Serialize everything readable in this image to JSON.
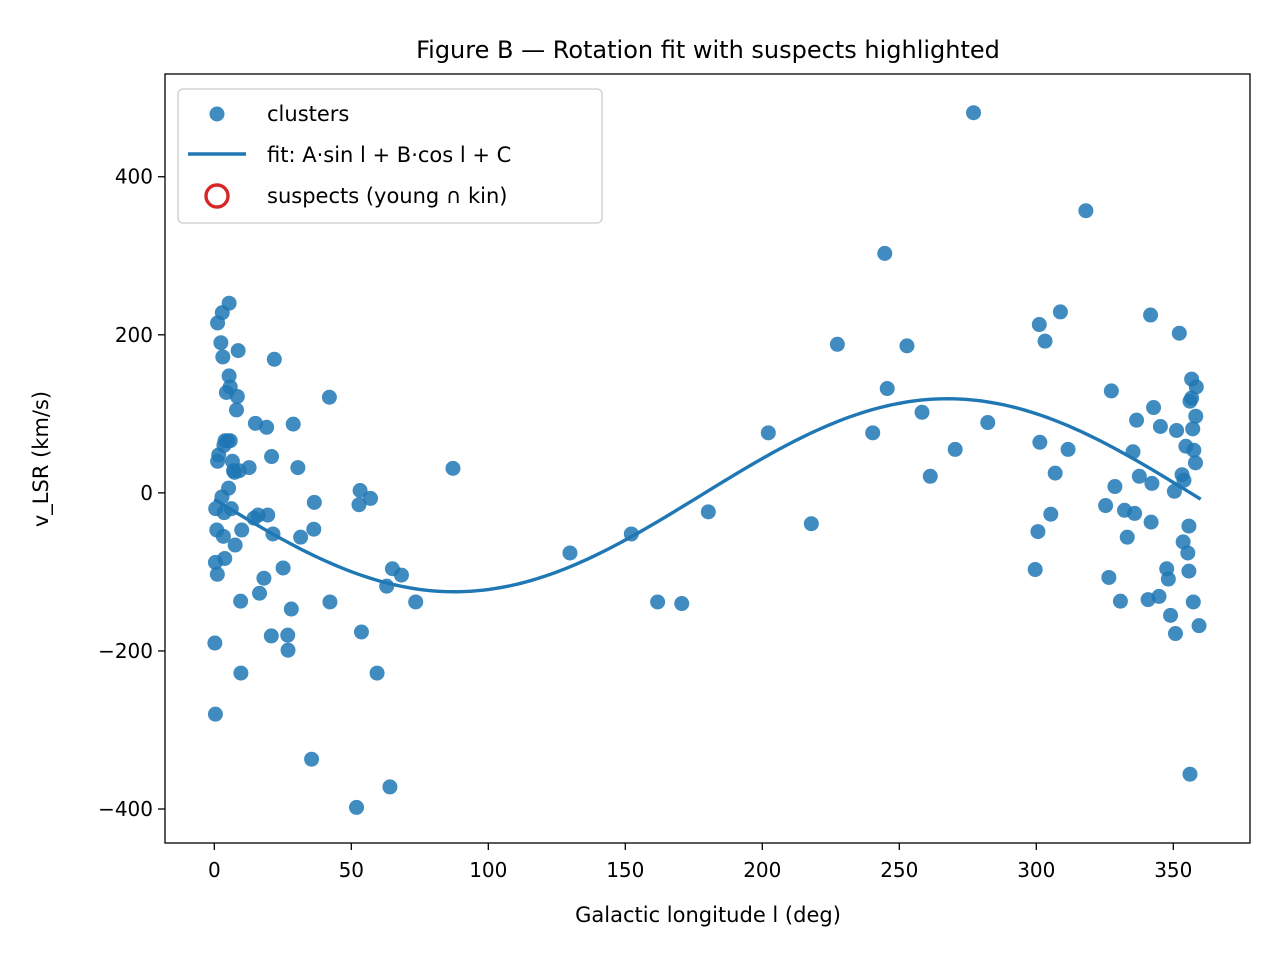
{
  "chart_data": {
    "type": "scatter",
    "title": "Figure B — Rotation fit with suspects highlighted",
    "xlabel": "Galactic longitude l (deg)",
    "ylabel": "v_LSR (km/s)",
    "xlim": [
      -18,
      378
    ],
    "ylim": [
      -443,
      530
    ],
    "x_ticks": [
      0,
      50,
      100,
      150,
      200,
      250,
      300,
      350
    ],
    "y_ticks": [
      -400,
      -200,
      0,
      200,
      400
    ],
    "x_tick_labels": [
      "0",
      "50",
      "100",
      "150",
      "200",
      "250",
      "300",
      "350"
    ],
    "y_tick_labels": [
      "−400",
      "−200",
      "0",
      "200",
      "400"
    ],
    "grid": false,
    "legend_position": "top-left",
    "legend": [
      {
        "label": "clusters",
        "kind": "marker"
      },
      {
        "label": "fit: A·sin l + B·cos l + C",
        "kind": "line"
      },
      {
        "label": "suspects (young ∩ kin)",
        "kind": "ring"
      }
    ],
    "colors": {
      "clusters": "#1f77b4",
      "fit": "#1f77b4",
      "suspects": "#d62728"
    },
    "series": [
      {
        "name": "clusters",
        "kind": "scatter",
        "points": [
          [
            0.4,
            -280
          ],
          [
            0.2,
            -190
          ],
          [
            0.4,
            -88
          ],
          [
            1.1,
            -103
          ],
          [
            0.9,
            -47
          ],
          [
            0.5,
            -20
          ],
          [
            1.2,
            40
          ],
          [
            1.6,
            48
          ],
          [
            1.2,
            215
          ],
          [
            2.4,
            190
          ],
          [
            2.9,
            228
          ],
          [
            3.1,
            172
          ],
          [
            2.8,
            -5
          ],
          [
            3.3,
            -55
          ],
          [
            3.6,
            -25
          ],
          [
            3.8,
            -83
          ],
          [
            3.5,
            60
          ],
          [
            3.9,
            66
          ],
          [
            4.9,
            66
          ],
          [
            5.8,
            66
          ],
          [
            4.4,
            127
          ],
          [
            5.4,
            148
          ],
          [
            5.4,
            240
          ],
          [
            5.8,
            134
          ],
          [
            5.2,
            6
          ],
          [
            6.2,
            -20
          ],
          [
            6.6,
            40
          ],
          [
            7.0,
            28
          ],
          [
            7.4,
            26
          ],
          [
            7.6,
            -66
          ],
          [
            8.1,
            105
          ],
          [
            8.4,
            122
          ],
          [
            8.7,
            180
          ],
          [
            9.1,
            28
          ],
          [
            9.6,
            -137
          ],
          [
            9.7,
            -228
          ],
          [
            10.0,
            -47
          ],
          [
            12.7,
            32
          ],
          [
            14.5,
            -32
          ],
          [
            15.0,
            88
          ],
          [
            16.0,
            -28
          ],
          [
            16.5,
            -127
          ],
          [
            18.1,
            -108
          ],
          [
            19.1,
            83
          ],
          [
            19.5,
            -28
          ],
          [
            20.8,
            -181
          ],
          [
            20.9,
            46
          ],
          [
            21.4,
            -52
          ],
          [
            21.9,
            169
          ],
          [
            25.1,
            -95
          ],
          [
            26.8,
            -180
          ],
          [
            26.9,
            -199
          ],
          [
            28.1,
            -147
          ],
          [
            28.8,
            87
          ],
          [
            30.5,
            32
          ],
          [
            31.5,
            -56
          ],
          [
            35.5,
            -337
          ],
          [
            36.3,
            -46
          ],
          [
            36.5,
            -12
          ],
          [
            42.0,
            121
          ],
          [
            42.2,
            -138
          ],
          [
            51.9,
            -398
          ],
          [
            52.8,
            -15
          ],
          [
            53.2,
            3
          ],
          [
            53.7,
            -176
          ],
          [
            57.0,
            -7
          ],
          [
            59.4,
            -228
          ],
          [
            62.9,
            -118
          ],
          [
            64.1,
            -372
          ],
          [
            65.0,
            -96
          ],
          [
            68.3,
            -104
          ],
          [
            73.5,
            -138
          ],
          [
            87.1,
            31
          ],
          [
            129.8,
            -76
          ],
          [
            152.2,
            -52
          ],
          [
            161.8,
            -138
          ],
          [
            170.6,
            -140
          ],
          [
            180.3,
            -24
          ],
          [
            202.2,
            76
          ],
          [
            217.9,
            -39
          ],
          [
            227.4,
            188
          ],
          [
            240.3,
            76
          ],
          [
            244.7,
            303
          ],
          [
            245.6,
            132
          ],
          [
            252.8,
            186
          ],
          [
            258.3,
            102
          ],
          [
            261.3,
            21
          ],
          [
            270.4,
            55
          ],
          [
            277.1,
            481
          ],
          [
            282.3,
            89
          ],
          [
            299.6,
            -97
          ],
          [
            300.6,
            -49
          ],
          [
            301.1,
            213
          ],
          [
            301.3,
            64
          ],
          [
            303.2,
            192
          ],
          [
            305.3,
            -27
          ],
          [
            306.9,
            25
          ],
          [
            308.8,
            229
          ],
          [
            311.6,
            55
          ],
          [
            318.1,
            357
          ],
          [
            325.3,
            -16
          ],
          [
            326.5,
            -107
          ],
          [
            327.4,
            129
          ],
          [
            328.7,
            8
          ],
          [
            330.7,
            -137
          ],
          [
            332.2,
            -22
          ],
          [
            333.2,
            -56
          ],
          [
            335.3,
            52
          ],
          [
            335.9,
            -26
          ],
          [
            336.6,
            92
          ],
          [
            337.6,
            21
          ],
          [
            340.8,
            -135
          ],
          [
            341.7,
            225
          ],
          [
            341.9,
            -37
          ],
          [
            342.2,
            12
          ],
          [
            342.8,
            108
          ],
          [
            344.8,
            -131
          ],
          [
            345.3,
            84
          ],
          [
            347.6,
            -96
          ],
          [
            348.2,
            -109
          ],
          [
            349.0,
            -155
          ],
          [
            350.4,
            2
          ],
          [
            350.8,
            -178
          ],
          [
            351.2,
            79
          ],
          [
            352.2,
            202
          ],
          [
            353.2,
            23
          ],
          [
            353.6,
            -62
          ],
          [
            353.9,
            16
          ],
          [
            354.6,
            59
          ],
          [
            355.3,
            -76
          ],
          [
            355.7,
            -99
          ],
          [
            355.7,
            -42
          ],
          [
            356.1,
            -356
          ],
          [
            356.1,
            116
          ],
          [
            356.7,
            144
          ],
          [
            356.7,
            120
          ],
          [
            357.1,
            81
          ],
          [
            357.3,
            -138
          ],
          [
            357.5,
            54
          ],
          [
            358.1,
            38
          ],
          [
            358.2,
            97
          ],
          [
            358.4,
            134
          ],
          [
            359.4,
            -168
          ]
        ]
      },
      {
        "name": "fit: A·sin l + B·cos l + C",
        "kind": "line",
        "A": -122,
        "B": -5,
        "C": -3,
        "x_range": [
          0,
          360
        ]
      }
    ]
  }
}
